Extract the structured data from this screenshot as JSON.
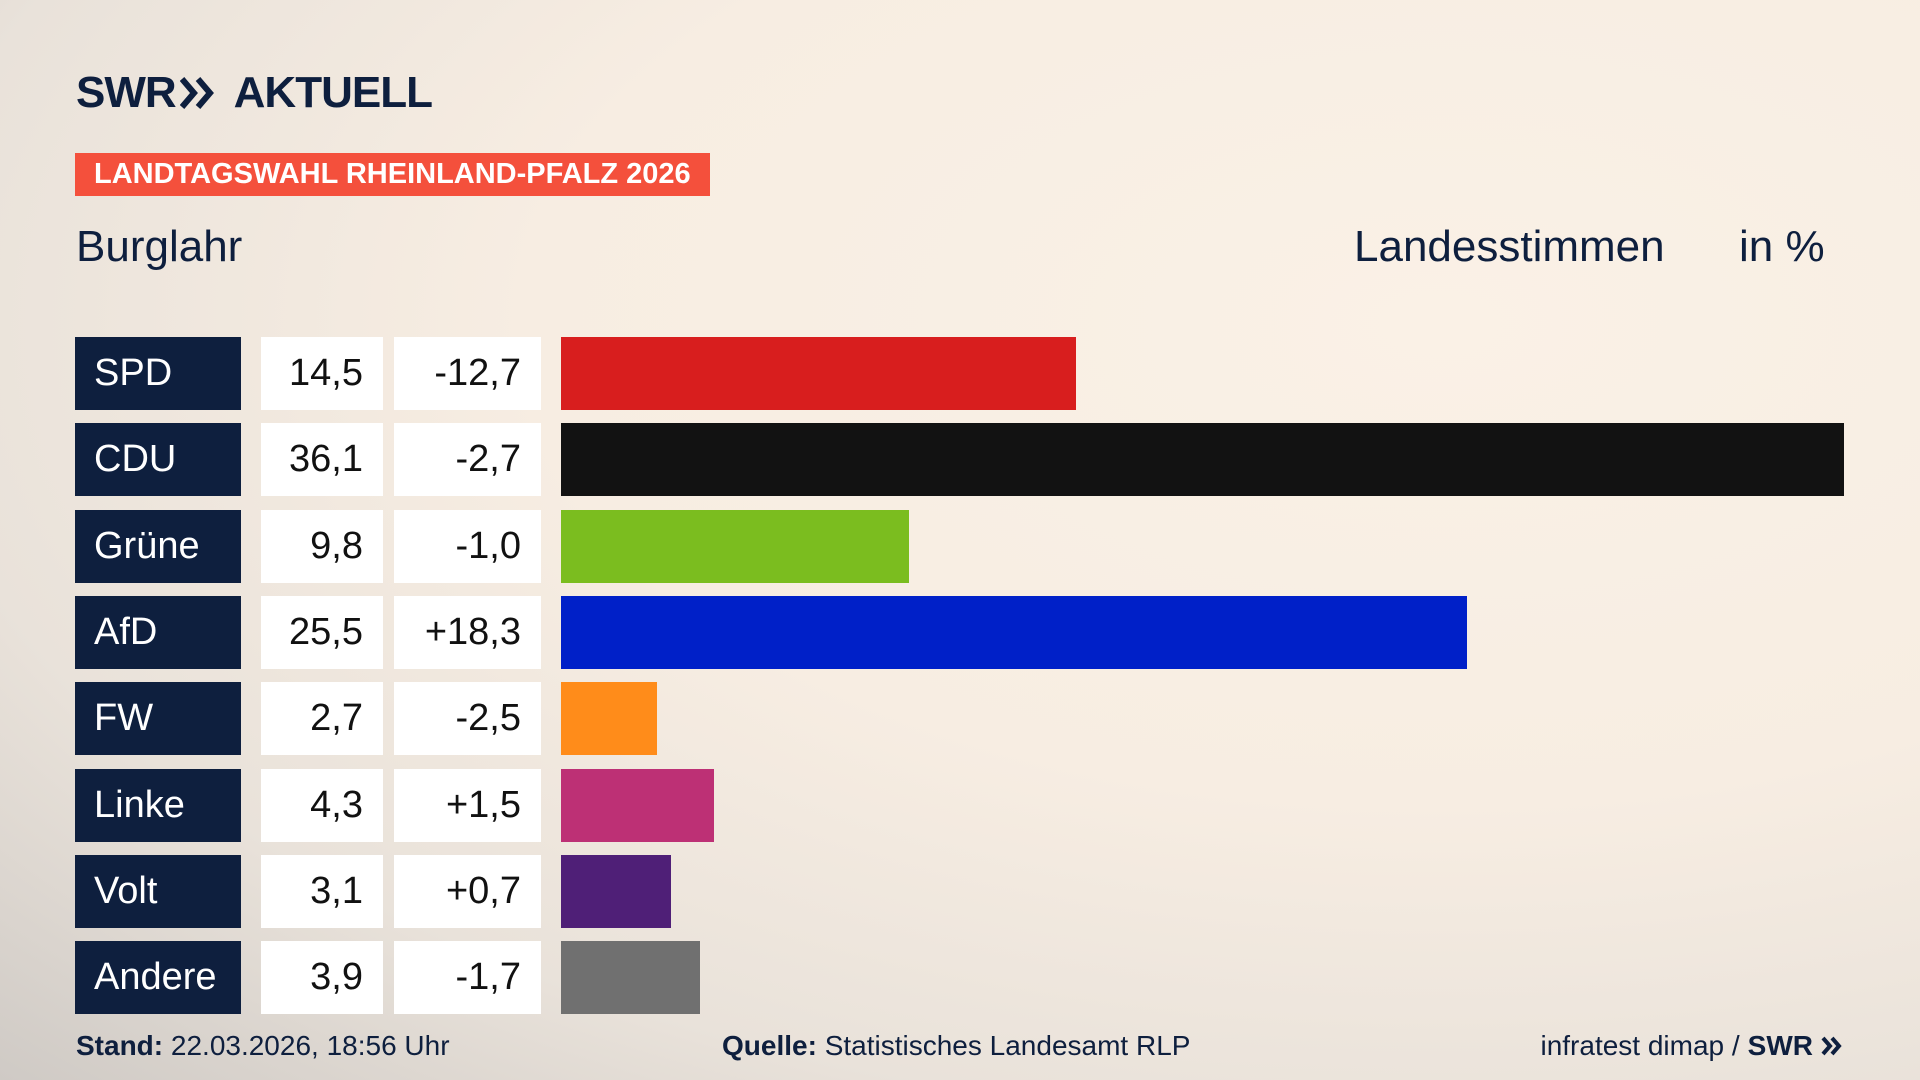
{
  "header": {
    "logo_left": "SWR",
    "logo_right": "AKTUELL",
    "badge": "LANDTAGSWAHL RHEINLAND-PFALZ 2026",
    "location": "Burglahr",
    "measure": "Landesstimmen",
    "unit": "in %"
  },
  "chart_data": {
    "type": "bar",
    "categories": [
      "SPD",
      "CDU",
      "Grüne",
      "AfD",
      "FW",
      "Linke",
      "Volt",
      "Andere"
    ],
    "values": [
      14.5,
      36.1,
      9.8,
      25.5,
      2.7,
      4.3,
      3.1,
      3.9
    ],
    "value_labels": [
      "14,5",
      "36,1",
      "9,8",
      "25,5",
      "2,7",
      "4,3",
      "3,1",
      "3,9"
    ],
    "changes": [
      "-12,7",
      "-2,7",
      "-1,0",
      "+18,3",
      "-2,5",
      "+1,5",
      "+0,7",
      "-1,7"
    ],
    "colors": [
      "#d81e1e",
      "#121212",
      "#7bbd1f",
      "#0020c8",
      "#ff8c1a",
      "#bd3075",
      "#4f1f77",
      "#707070"
    ]
  },
  "footer": {
    "stand_label": "Stand:",
    "stand": "22.03.2026, 18:56 Uhr",
    "source_label": "Quelle:",
    "source": "Statistisches Landesamt RLP",
    "credit": "infratest dimap /",
    "credit_logo": "SWR"
  }
}
